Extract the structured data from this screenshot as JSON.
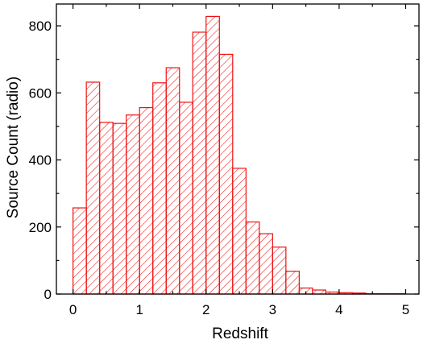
{
  "chart_data": {
    "type": "bar",
    "xlabel": "Redshift",
    "ylabel": "Source Count (radio)",
    "xlim": [
      -0.25,
      5.2
    ],
    "ylim": [
      0,
      865
    ],
    "xticks": [
      0,
      1,
      2,
      3,
      4,
      5
    ],
    "yticks": [
      0,
      200,
      400,
      600,
      800
    ],
    "bin_width": 0.2,
    "bins": [
      {
        "x0": 0.0,
        "value": 257
      },
      {
        "x0": 0.2,
        "value": 632
      },
      {
        "x0": 0.4,
        "value": 512
      },
      {
        "x0": 0.6,
        "value": 509
      },
      {
        "x0": 0.8,
        "value": 534
      },
      {
        "x0": 1.0,
        "value": 556
      },
      {
        "x0": 1.2,
        "value": 630
      },
      {
        "x0": 1.4,
        "value": 675
      },
      {
        "x0": 1.6,
        "value": 572
      },
      {
        "x0": 1.8,
        "value": 781
      },
      {
        "x0": 2.0,
        "value": 828
      },
      {
        "x0": 2.2,
        "value": 715
      },
      {
        "x0": 2.4,
        "value": 375
      },
      {
        "x0": 2.6,
        "value": 215
      },
      {
        "x0": 2.8,
        "value": 180
      },
      {
        "x0": 3.0,
        "value": 140
      },
      {
        "x0": 3.2,
        "value": 68
      },
      {
        "x0": 3.4,
        "value": 18
      },
      {
        "x0": 3.6,
        "value": 12
      },
      {
        "x0": 3.8,
        "value": 6
      },
      {
        "x0": 4.0,
        "value": 4
      },
      {
        "x0": 4.2,
        "value": 3
      },
      {
        "x0": 4.4,
        "value": 1
      },
      {
        "x0": 4.6,
        "value": 1
      },
      {
        "x0": 4.8,
        "value": 1
      }
    ],
    "bar_color": "#ee1111",
    "fill": "diagonal-hatch",
    "grid": false,
    "legend": "none"
  }
}
